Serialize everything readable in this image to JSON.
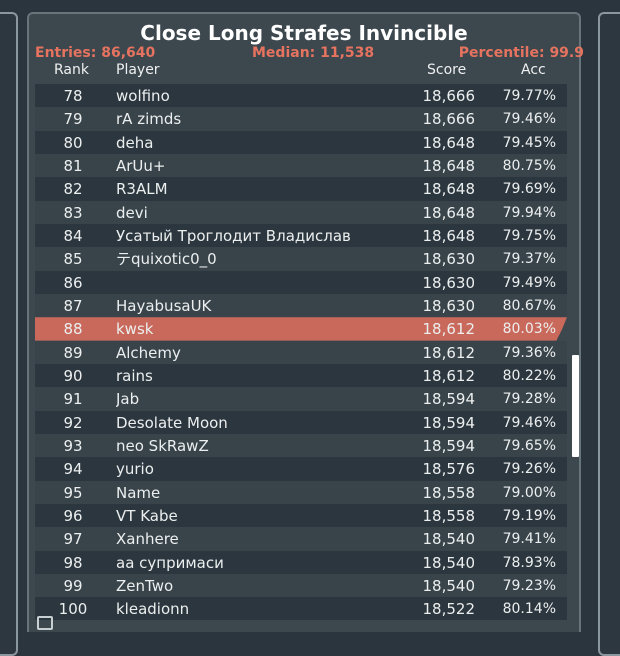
{
  "leaderboard": {
    "title": "Close Long Strafes Invincible",
    "stats": {
      "entries": "Entries: 86,640",
      "median": "Median: 11,538",
      "percentile": "Percentile: 99.9"
    },
    "columns": {
      "rank": "Rank",
      "player": "Player",
      "score": "Score",
      "acc": "Acc"
    },
    "highlight_color": "#c9695b",
    "stat_color": "#e5735f",
    "highlighted_rank": "88",
    "rows": [
      {
        "rank": "78",
        "player": "wolfino",
        "score": "18,666",
        "acc": "79.77%"
      },
      {
        "rank": "79",
        "player": "rA zimds",
        "score": "18,666",
        "acc": "79.46%"
      },
      {
        "rank": "80",
        "player": "deha",
        "score": "18,648",
        "acc": "79.45%"
      },
      {
        "rank": "81",
        "player": "ArUu+",
        "score": "18,648",
        "acc": "80.75%"
      },
      {
        "rank": "82",
        "player": "R3ALM",
        "score": "18,648",
        "acc": "79.69%"
      },
      {
        "rank": "83",
        "player": "devi",
        "score": "18,648",
        "acc": "79.94%"
      },
      {
        "rank": "84",
        "player": "Усатый Троглодит Владислав",
        "score": "18,648",
        "acc": "79.75%"
      },
      {
        "rank": "85",
        "player": "テquixotic0_0",
        "score": "18,630",
        "acc": "79.37%"
      },
      {
        "rank": "86",
        "player": "",
        "score": "18,630",
        "acc": "79.49%"
      },
      {
        "rank": "87",
        "player": "HayabusaUK",
        "score": "18,630",
        "acc": "80.67%"
      },
      {
        "rank": "88",
        "player": "kwsk",
        "score": "18,612",
        "acc": "80.03%"
      },
      {
        "rank": "89",
        "player": "Alchemy",
        "score": "18,612",
        "acc": "79.36%"
      },
      {
        "rank": "90",
        "player": "rains",
        "score": "18,612",
        "acc": "80.22%"
      },
      {
        "rank": "91",
        "player": "Jab",
        "score": "18,594",
        "acc": "79.28%"
      },
      {
        "rank": "92",
        "player": "Desolate Moon",
        "score": "18,594",
        "acc": "79.46%"
      },
      {
        "rank": "93",
        "player": "neo SkRawZ",
        "score": "18,594",
        "acc": "79.65%"
      },
      {
        "rank": "94",
        "player": "yurio",
        "score": "18,576",
        "acc": "79.26%"
      },
      {
        "rank": "95",
        "player": "Name",
        "score": "18,558",
        "acc": "79.00%"
      },
      {
        "rank": "96",
        "player": "VT Kabe",
        "score": "18,558",
        "acc": "79.19%"
      },
      {
        "rank": "97",
        "player": "Xanhere",
        "score": "18,540",
        "acc": "79.41%"
      },
      {
        "rank": "98",
        "player": "аа супримаси",
        "score": "18,540",
        "acc": "78.93%"
      },
      {
        "rank": "99",
        "player": "ZenTwo",
        "score": "18,540",
        "acc": "79.23%"
      },
      {
        "rank": "100",
        "player": "kleadionn",
        "score": "18,522",
        "acc": "80.14%"
      }
    ]
  }
}
